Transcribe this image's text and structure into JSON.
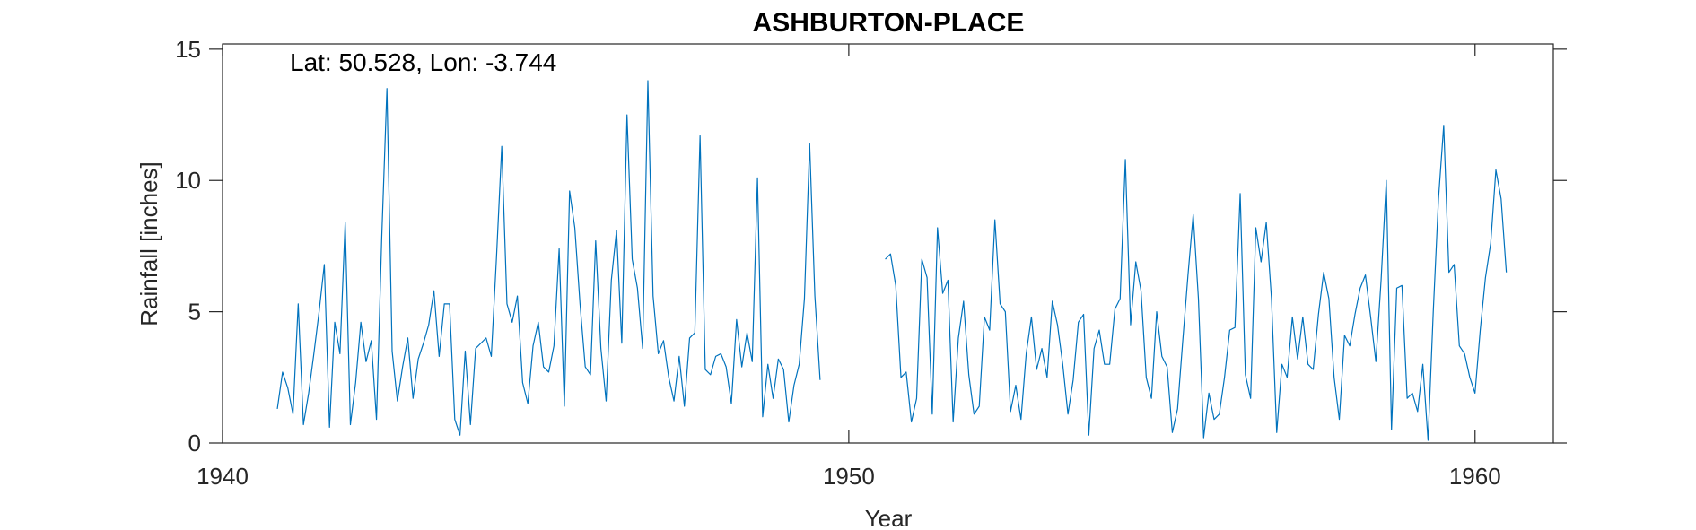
{
  "chart_data": {
    "type": "line",
    "title": "ASHBURTON-PLACE",
    "xlabel": "Year",
    "ylabel": "Rainfall [inches]",
    "annotation": "Lat: 50.528, Lon: -3.744",
    "xlim": [
      1940,
      1961.25
    ],
    "ylim": [
      0,
      15.2
    ],
    "xticks": [
      1940,
      1950,
      1960
    ],
    "xtick_labels": [
      "1940",
      "1950",
      "1960"
    ],
    "yticks": [
      0,
      5,
      10,
      15
    ],
    "ytick_labels": [
      "0",
      "5",
      "10",
      "15"
    ],
    "grid": false,
    "series": [
      {
        "color": "#0072BD",
        "segments": [
          {
            "start_year": 1940.875,
            "step": 0.0833333,
            "values": [
              1.3,
              2.7,
              2.1,
              1.1,
              5.3,
              0.7,
              1.9,
              3.4,
              5.0,
              6.8,
              0.6,
              4.6,
              3.4,
              8.4,
              0.7,
              2.3,
              4.6,
              3.1,
              3.9,
              0.9,
              7.8,
              13.5,
              3.5,
              1.6,
              2.9,
              4.0,
              1.7,
              3.2,
              3.8,
              4.5,
              5.8,
              3.3,
              5.3,
              5.3,
              0.9,
              0.3,
              3.5,
              0.7,
              3.6,
              3.8,
              4.0,
              3.3,
              7.1,
              11.3,
              5.3,
              4.6,
              5.6,
              2.3,
              1.5,
              3.7,
              4.6,
              2.9,
              2.7,
              3.7,
              7.4,
              1.4,
              9.6,
              8.2,
              5.3,
              2.9,
              2.6,
              7.7,
              3.6,
              1.6,
              6.2,
              8.1,
              3.8,
              12.5,
              7.0,
              5.9,
              3.6,
              13.8,
              5.6,
              3.4,
              3.9,
              2.5,
              1.6,
              3.3,
              1.4,
              4.0,
              4.2,
              11.7,
              2.8,
              2.6,
              3.3,
              3.4,
              2.9,
              1.5,
              4.7,
              2.9,
              4.2,
              3.1,
              10.1,
              1.0,
              3.0,
              1.7,
              3.2,
              2.8,
              0.8,
              2.2,
              3.0,
              5.5,
              11.4,
              5.6,
              2.4
            ]
          },
          {
            "start_year": 1950.583,
            "step": 0.0833333,
            "values": [
              7.0,
              7.2,
              6.0,
              2.5,
              2.7,
              0.8,
              1.7,
              7.0,
              6.3,
              1.1,
              8.2,
              5.7,
              6.2,
              0.8,
              4.0,
              5.4,
              2.6,
              1.1,
              1.4,
              4.8,
              4.3,
              8.5,
              5.3,
              5.0,
              1.2,
              2.2,
              0.9,
              3.4,
              4.8,
              2.8,
              3.6,
              2.5,
              5.4,
              4.5,
              3.0,
              1.1,
              2.4,
              4.6,
              4.9,
              0.3,
              3.6,
              4.3,
              3.0,
              3.0,
              5.1,
              5.5,
              10.8,
              4.5,
              6.9,
              5.8,
              2.5,
              1.7,
              5.0,
              3.3,
              2.9,
              0.4,
              1.3,
              3.9,
              6.4,
              8.7,
              5.5,
              0.2,
              1.9,
              0.9,
              1.1,
              2.5,
              4.3,
              4.4,
              9.5,
              2.6,
              1.7,
              8.2,
              6.9,
              8.4,
              5.5,
              0.4,
              3.0,
              2.5,
              4.8,
              3.2,
              4.8,
              3.0,
              2.8,
              4.9,
              6.5,
              5.5,
              2.5,
              0.9,
              4.1,
              3.7,
              4.9,
              5.9,
              6.4,
              4.8,
              3.1,
              6.2,
              10.0,
              0.5,
              5.9,
              6.0,
              1.7,
              1.9,
              1.2,
              3.0,
              0.1,
              5.0,
              9.3,
              12.1,
              6.5,
              6.8,
              3.7,
              3.4,
              2.5,
              1.9,
              4.3,
              6.3,
              7.6,
              10.4,
              9.3,
              6.5
            ]
          }
        ]
      }
    ]
  }
}
